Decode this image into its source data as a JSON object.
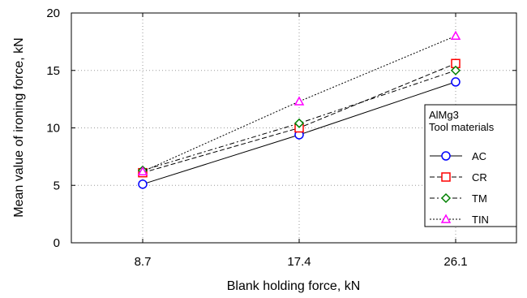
{
  "chart_data": {
    "type": "line",
    "xlabel": "Blank holding force, kN",
    "ylabel": "Mean value of ironing force, kN",
    "categories": [
      "8.7",
      "17.4",
      "26.1"
    ],
    "ylim": [
      0,
      20
    ],
    "yticks": [
      0,
      5,
      10,
      15,
      20
    ],
    "grid": true,
    "legend": {
      "placement": "right",
      "title_lines": [
        "AlMg3",
        "Tool materials"
      ]
    },
    "series": [
      {
        "name": "AC",
        "values": [
          5.1,
          9.4,
          14.0
        ],
        "color": "#0000ff",
        "marker": "circle",
        "line": "solid"
      },
      {
        "name": "CR",
        "values": [
          6.1,
          10.0,
          15.6
        ],
        "color": "#ff0000",
        "marker": "square",
        "line": "dashed"
      },
      {
        "name": "TM",
        "values": [
          6.3,
          10.4,
          15.0
        ],
        "color": "#008000",
        "marker": "diamond",
        "line": "dashdot"
      },
      {
        "name": "TIN",
        "values": [
          6.2,
          12.3,
          18.0
        ],
        "color": "#ff00ff",
        "marker": "triangle",
        "line": "dotted"
      }
    ]
  }
}
